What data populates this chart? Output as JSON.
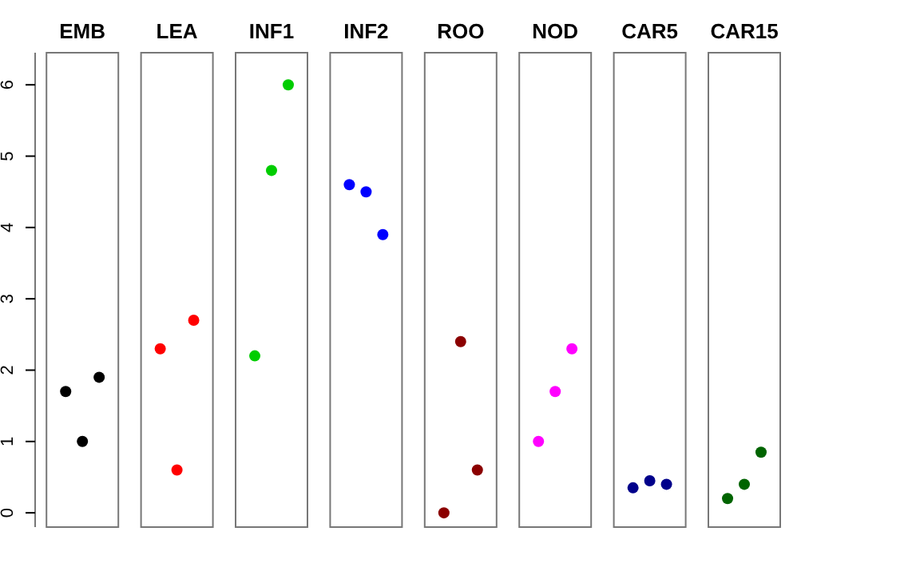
{
  "chart_data": {
    "type": "scatter",
    "categories": [
      "EMB",
      "LEA",
      "INF1",
      "INF2",
      "ROO",
      "NOD",
      "CAR5",
      "CAR15"
    ],
    "series": [
      {
        "values": [
          1.7,
          2.3,
          2.2,
          4.6,
          0.0,
          1.0,
          0.35,
          0.2
        ],
        "colors": [
          "#000000",
          "#ff0000",
          "#00cd00",
          "#0000ff",
          "#8b0000",
          "#ff00ff",
          "#00008b",
          "#006400"
        ]
      },
      {
        "values": [
          1.0,
          0.6,
          4.8,
          4.5,
          2.4,
          1.7,
          0.45,
          0.4
        ],
        "colors": [
          "#000000",
          "#ff0000",
          "#00cd00",
          "#0000ff",
          "#8b0000",
          "#ff00ff",
          "#00008b",
          "#006400"
        ]
      },
      {
        "values": [
          1.9,
          2.7,
          6.0,
          3.9,
          0.6,
          2.3,
          0.4,
          0.85
        ],
        "colors": [
          "#000000",
          "#ff0000",
          "#00cd00",
          "#0000ff",
          "#8b0000",
          "#ff00ff",
          "#00008b",
          "#006400"
        ]
      }
    ],
    "ylim": [
      -0.2,
      6.45
    ],
    "yticks": [
      0,
      1,
      2,
      3,
      4,
      5,
      6
    ],
    "marker": "circle"
  }
}
